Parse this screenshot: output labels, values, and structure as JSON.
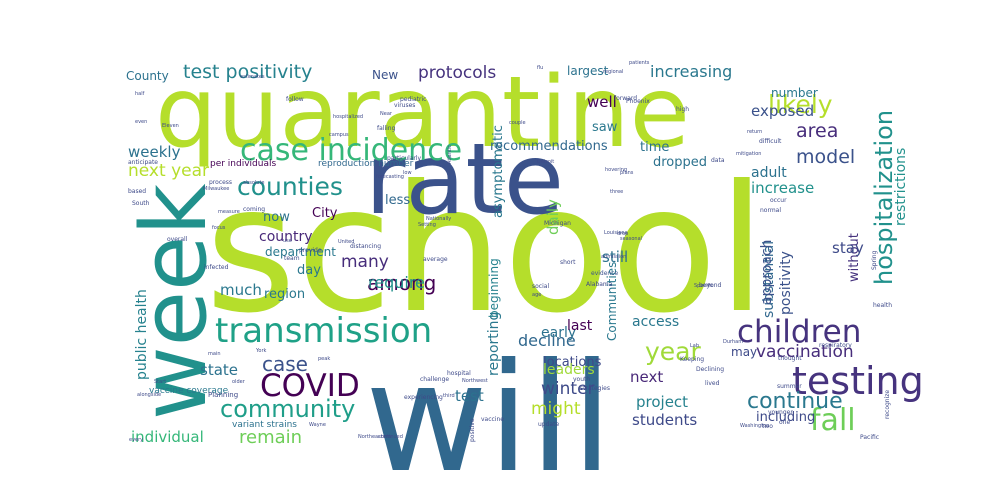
{
  "wordcloud": {
    "words": [
      {
        "text": "school",
        "color": "#b5de2b"
      },
      {
        "text": "will",
        "color": "#31688e"
      },
      {
        "text": "quarantine",
        "color": "#b5de2b"
      },
      {
        "text": "rate",
        "color": "#3b528b"
      },
      {
        "text": "week",
        "color": "#21918c"
      },
      {
        "text": "transmission",
        "color": "#1fa187"
      },
      {
        "text": "case incidence",
        "color": "#35b779"
      },
      {
        "text": "testing",
        "color": "#46337e"
      },
      {
        "text": "children",
        "color": "#46337e"
      },
      {
        "text": "COVID",
        "color": "#440154"
      },
      {
        "text": "counties",
        "color": "#21918c"
      },
      {
        "text": "community",
        "color": "#1f9e89"
      },
      {
        "text": "fall",
        "color": "#6ece58"
      },
      {
        "text": "hospitalization",
        "color": "#21918c"
      },
      {
        "text": "test positivity",
        "color": "#26828e"
      },
      {
        "text": "protocols",
        "color": "#46337e"
      },
      {
        "text": "likely",
        "color": "#b5de2b"
      },
      {
        "text": "increasing",
        "color": "#2a788e"
      },
      {
        "text": "area",
        "color": "#472d7b"
      },
      {
        "text": "model",
        "color": "#3b528b"
      },
      {
        "text": "year",
        "color": "#a0da39"
      },
      {
        "text": "continue",
        "color": "#2a788e"
      },
      {
        "text": "remain",
        "color": "#6ece58"
      },
      {
        "text": "vaccination",
        "color": "#472d7b"
      },
      {
        "text": "case",
        "color": "#3b528b"
      },
      {
        "text": "state",
        "color": "#2c728e"
      },
      {
        "text": "next year",
        "color": "#b5de2b"
      },
      {
        "text": "weekly",
        "color": "#2c728e"
      },
      {
        "text": "among",
        "color": "#440154"
      },
      {
        "text": "many",
        "color": "#472d7b"
      },
      {
        "text": "much",
        "color": "#2a788e"
      },
      {
        "text": "require",
        "color": "#21918c"
      },
      {
        "text": "decline",
        "color": "#31688e"
      },
      {
        "text": "winter",
        "color": "#3e4a89"
      },
      {
        "text": "might",
        "color": "#b5de2b"
      },
      {
        "text": "test",
        "color": "#2c728e"
      },
      {
        "text": "next",
        "color": "#482878"
      },
      {
        "text": "project",
        "color": "#26828e"
      },
      {
        "text": "students",
        "color": "#3e4a89"
      },
      {
        "text": "individual",
        "color": "#35b779"
      },
      {
        "text": "public health",
        "color": "#26828e"
      },
      {
        "text": "restrictions",
        "color": "#21918c"
      },
      {
        "text": "substantial",
        "color": "#31688e"
      },
      {
        "text": "exposed",
        "color": "#3b528b"
      },
      {
        "text": "increase",
        "color": "#21918c"
      },
      {
        "text": "adult",
        "color": "#2c728e"
      },
      {
        "text": "approach",
        "color": "#3b528b"
      },
      {
        "text": "positivity",
        "color": "#3b528b"
      },
      {
        "text": "without",
        "color": "#46337e"
      },
      {
        "text": "stay",
        "color": "#3e4a89"
      },
      {
        "text": "still",
        "color": "#2c728e"
      },
      {
        "text": "early",
        "color": "#2c728e"
      },
      {
        "text": "last",
        "color": "#440154"
      },
      {
        "text": "access",
        "color": "#2a788e"
      },
      {
        "text": "locations",
        "color": "#3e4a89"
      },
      {
        "text": "leaders",
        "color": "#a0da39"
      },
      {
        "text": "reporting",
        "color": "#2a788e"
      },
      {
        "text": "beginning",
        "color": "#26828e"
      },
      {
        "text": "daily",
        "color": "#6ece58"
      },
      {
        "text": "asymptomatic",
        "color": "#2a788e"
      },
      {
        "text": "recommendations",
        "color": "#31688e"
      },
      {
        "text": "time",
        "color": "#2c728e"
      },
      {
        "text": "dropped",
        "color": "#2c728e"
      },
      {
        "text": "well",
        "color": "#440154"
      },
      {
        "text": "saw",
        "color": "#2a788e"
      },
      {
        "text": "largest",
        "color": "#2c728e"
      },
      {
        "text": "number",
        "color": "#2a788e"
      },
      {
        "text": "region",
        "color": "#2a788e"
      },
      {
        "text": "department",
        "color": "#2a788e"
      },
      {
        "text": "City",
        "color": "#440154"
      },
      {
        "text": "now",
        "color": "#2c728e"
      },
      {
        "text": "country",
        "color": "#482878"
      },
      {
        "text": "day",
        "color": "#2a788e"
      },
      {
        "text": "less",
        "color": "#31688e"
      },
      {
        "text": "including",
        "color": "#3e4a89"
      },
      {
        "text": "may",
        "color": "#3e4a89"
      },
      {
        "text": "New",
        "color": "#3b528b"
      },
      {
        "text": "County",
        "color": "#2c728e"
      },
      {
        "text": "Communities",
        "color": "#2a788e"
      },
      {
        "text": "per individuals",
        "color": "#440154"
      },
      {
        "text": "reproduction number",
        "color": "#31688e"
      },
      {
        "text": "variant strains",
        "color": "#2c728e"
      },
      {
        "text": "vaccine coverage",
        "color": "#2a788e"
      },
      {
        "text": "Planning",
        "color": "#3e4a89"
      },
      {
        "text": "Phoenix",
        "color": "#3e4a89"
      },
      {
        "text": "evidence",
        "color": "#3b528b"
      },
      {
        "text": "Alabama",
        "color": "#3e4a89"
      },
      {
        "text": "beyond",
        "color": "#3e4a89"
      },
      {
        "text": "younger",
        "color": "#3e4a89"
      },
      {
        "text": "respiratory",
        "color": "#3e4a89"
      },
      {
        "text": "health",
        "color": "#3e4a89"
      },
      {
        "text": "falling",
        "color": "#3e4a89"
      },
      {
        "text": "particularly",
        "color": "#3e4a89"
      },
      {
        "text": "coming",
        "color": "#3e4a89"
      },
      {
        "text": "distancing",
        "color": "#3e4a89"
      },
      {
        "text": "average",
        "color": "#3e4a89"
      },
      {
        "text": "process",
        "color": "#3e4a89"
      },
      {
        "text": "based",
        "color": "#3e4a89"
      },
      {
        "text": "anticipate",
        "color": "#3e4a89"
      },
      {
        "text": "South",
        "color": "#3e4a89"
      },
      {
        "text": "infected",
        "color": "#3e4a89"
      },
      {
        "text": "overall",
        "color": "#3e4a89"
      },
      {
        "text": "peak",
        "color": "#3e4a89"
      },
      {
        "text": "hospital",
        "color": "#3e4a89"
      },
      {
        "text": "challenge",
        "color": "#3e4a89"
      },
      {
        "text": "third",
        "color": "#3e4a89"
      },
      {
        "text": "experiencing",
        "color": "#3e4a89"
      },
      {
        "text": "Northwest",
        "color": "#3e4a89"
      },
      {
        "text": "youth",
        "color": "#3e4a89"
      },
      {
        "text": "strategies",
        "color": "#3e4a89"
      },
      {
        "text": "Keeping",
        "color": "#3e4a89"
      },
      {
        "text": "Declining",
        "color": "#3e4a89"
      },
      {
        "text": "lived",
        "color": "#3e4a89"
      },
      {
        "text": "thought",
        "color": "#3e4a89"
      },
      {
        "text": "summer",
        "color": "#3e4a89"
      },
      {
        "text": "update",
        "color": "#3e4a89"
      },
      {
        "text": "vaccine",
        "color": "#3e4a89"
      },
      {
        "text": "positive",
        "color": "#3e4a89"
      },
      {
        "text": "Washington",
        "color": "#3e4a89"
      },
      {
        "text": "two",
        "color": "#3e4a89"
      },
      {
        "text": "one",
        "color": "#3e4a89"
      },
      {
        "text": "recognize",
        "color": "#3e4a89"
      },
      {
        "text": "Pacific",
        "color": "#3e4a89"
      },
      {
        "text": "Spring",
        "color": "#3e4a89"
      },
      {
        "text": "Specific",
        "color": "#3e4a89"
      },
      {
        "text": "high",
        "color": "#3e4a89"
      },
      {
        "text": "data",
        "color": "#3e4a89"
      },
      {
        "text": "normal",
        "color": "#3e4a89"
      },
      {
        "text": "occur",
        "color": "#3e4a89"
      },
      {
        "text": "difficult",
        "color": "#3e4a89"
      },
      {
        "text": "forward",
        "color": "#3e4a89"
      },
      {
        "text": "regional",
        "color": "#3e4a89"
      },
      {
        "text": "patients",
        "color": "#3e4a89"
      },
      {
        "text": "follow",
        "color": "#3e4a89"
      },
      {
        "text": "even",
        "color": "#3e4a89"
      },
      {
        "text": "Eleven",
        "color": "#3e4a89"
      },
      {
        "text": "half",
        "color": "#3e4a89"
      },
      {
        "text": "estimates",
        "color": "#3e4a89"
      },
      {
        "text": "pediatric",
        "color": "#3e4a89"
      },
      {
        "text": "viruses",
        "color": "#3e4a89"
      },
      {
        "text": "Near",
        "color": "#3e4a89"
      },
      {
        "text": "provide",
        "color": "#3e4a89"
      },
      {
        "text": "team",
        "color": "#3e4a89"
      },
      {
        "text": "use",
        "color": "#3e4a89"
      },
      {
        "text": "United",
        "color": "#3e4a89"
      },
      {
        "text": "low",
        "color": "#3e4a89"
      },
      {
        "text": "Michigan",
        "color": "#3e4a89"
      },
      {
        "text": "short",
        "color": "#3e4a89"
      },
      {
        "text": "social",
        "color": "#3e4a89"
      },
      {
        "text": "age",
        "color": "#3e4a89"
      },
      {
        "text": "plans",
        "color": "#3e4a89"
      },
      {
        "text": "absolute",
        "color": "#3e4a89"
      },
      {
        "text": "focus",
        "color": "#3e4a89"
      },
      {
        "text": "York",
        "color": "#3e4a89"
      },
      {
        "text": "main",
        "color": "#3e4a89"
      },
      {
        "text": "Start",
        "color": "#3e4a89"
      },
      {
        "text": "alongside",
        "color": "#3e4a89"
      },
      {
        "text": "every",
        "color": "#3e4a89"
      },
      {
        "text": "older",
        "color": "#3e4a89"
      },
      {
        "text": "Wayne",
        "color": "#3e4a89"
      },
      {
        "text": "Northeastern",
        "color": "#3e4a89"
      },
      {
        "text": "continued",
        "color": "#3e4a89"
      },
      {
        "text": "Nationally",
        "color": "#3e4a89"
      },
      {
        "text": "drop",
        "color": "#3e4a89"
      },
      {
        "text": "three",
        "color": "#3e4a89"
      },
      {
        "text": "mitigation",
        "color": "#3e4a89"
      },
      {
        "text": "forecasting",
        "color": "#3e4a89"
      },
      {
        "text": "Atlantic",
        "color": "#3e4a89"
      },
      {
        "text": "Setting",
        "color": "#3e4a89"
      },
      {
        "text": "Detroit",
        "color": "#3e4a89"
      },
      {
        "text": "hospitalized",
        "color": "#3e4a89"
      },
      {
        "text": "campus",
        "color": "#3e4a89"
      },
      {
        "text": "measure",
        "color": "#3e4a89"
      },
      {
        "text": "Milwaukee",
        "color": "#3e4a89"
      },
      {
        "text": "flu",
        "color": "#3e4a89"
      },
      {
        "text": "couple",
        "color": "#3e4a89"
      },
      {
        "text": "return",
        "color": "#3e4a89"
      },
      {
        "text": "hovering",
        "color": "#3e4a89"
      },
      {
        "text": "admission",
        "color": "#3e4a89"
      },
      {
        "text": "seasonal",
        "color": "#3e4a89"
      },
      {
        "text": "Louisiana",
        "color": "#3e4a89"
      },
      {
        "text": "Lab",
        "color": "#3e4a89"
      },
      {
        "text": "Durham",
        "color": "#3e4a89"
      },
      {
        "text": "findings",
        "color": "#3e4a89"
      },
      {
        "text": "outdoor",
        "color": "#3e4a89"
      }
    ]
  }
}
